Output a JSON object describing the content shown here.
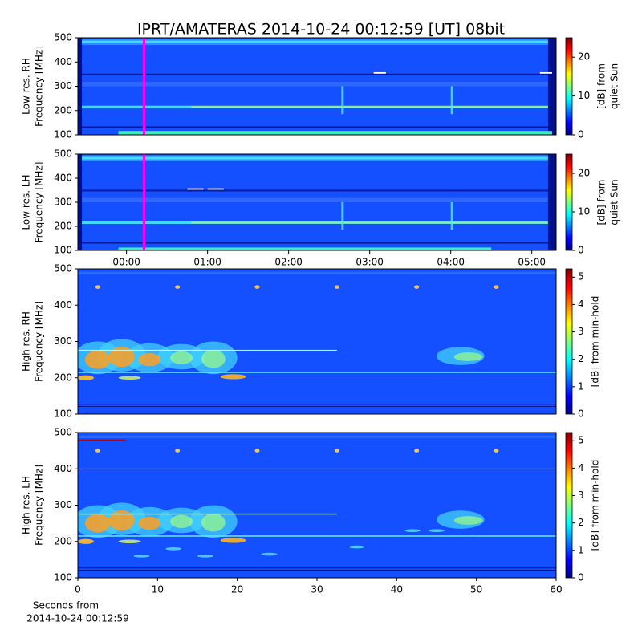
{
  "chart_data": [
    {
      "type": "heatmap",
      "title": "IPRT/AMATERAS 2014-10-24 00:12:59 [UT]   08bit",
      "ylabel": [
        "Low res. RH",
        "Frequency [MHz]"
      ],
      "ylim": [
        100,
        500
      ],
      "yticks": [
        100,
        200,
        300,
        400,
        500
      ],
      "xlim": [
        -0.6,
        5.3
      ],
      "colormap": "jet",
      "colorbar": {
        "label": [
          "[dB] from",
          "quiet Sun"
        ],
        "lim": [
          0,
          25
        ],
        "ticks": [
          0,
          10,
          20
        ]
      },
      "marker": {
        "x": 0.2164,
        "color": "#ff00ff"
      }
    },
    {
      "type": "heatmap",
      "ylabel": [
        "Low res. LH",
        "Frequency [MHz]"
      ],
      "ylim": [
        100,
        500
      ],
      "yticks": [
        100,
        200,
        300,
        400,
        500
      ],
      "xlim": [
        -0.6,
        5.3
      ],
      "xticks": [
        {
          "value": 0,
          "label": "00:00"
        },
        {
          "value": 1,
          "label": "01:00"
        },
        {
          "value": 2,
          "label": "02:00"
        },
        {
          "value": 3,
          "label": "03:00"
        },
        {
          "value": 4,
          "label": "04:00"
        },
        {
          "value": 5,
          "label": "05:00"
        }
      ],
      "colormap": "jet",
      "colorbar": {
        "label": [
          "[dB] from",
          "quiet Sun"
        ],
        "lim": [
          0,
          25
        ],
        "ticks": [
          0,
          10,
          20
        ]
      },
      "marker": {
        "x": 0.2164,
        "color": "#ff00ff"
      }
    },
    {
      "type": "heatmap",
      "ylabel": [
        "High res. RH",
        "Frequency [MHz]"
      ],
      "ylim": [
        100,
        500
      ],
      "yticks": [
        100,
        200,
        300,
        400,
        500
      ],
      "xlim": [
        0,
        60
      ],
      "colormap": "jet",
      "colorbar": {
        "label": [
          "[dB] from min-hold"
        ],
        "lim": [
          0,
          5.3
        ],
        "ticks": [
          0,
          1,
          2,
          3,
          4,
          5
        ]
      }
    },
    {
      "type": "heatmap",
      "ylabel": [
        "High res. LH",
        "Frequency [MHz]"
      ],
      "ylim": [
        100,
        500
      ],
      "yticks": [
        100,
        200,
        300,
        400,
        500
      ],
      "xlim": [
        0,
        60
      ],
      "xticks": [
        0,
        10,
        20,
        30,
        40,
        50,
        60
      ],
      "xlabel": [
        "Seconds from",
        "2014-10-24 00:12:59"
      ],
      "colormap": "jet",
      "colorbar": {
        "label": [
          "[dB] from min-hold"
        ],
        "lim": [
          0,
          5.3
        ],
        "ticks": [
          0,
          1,
          2,
          3,
          4,
          5
        ]
      }
    }
  ]
}
